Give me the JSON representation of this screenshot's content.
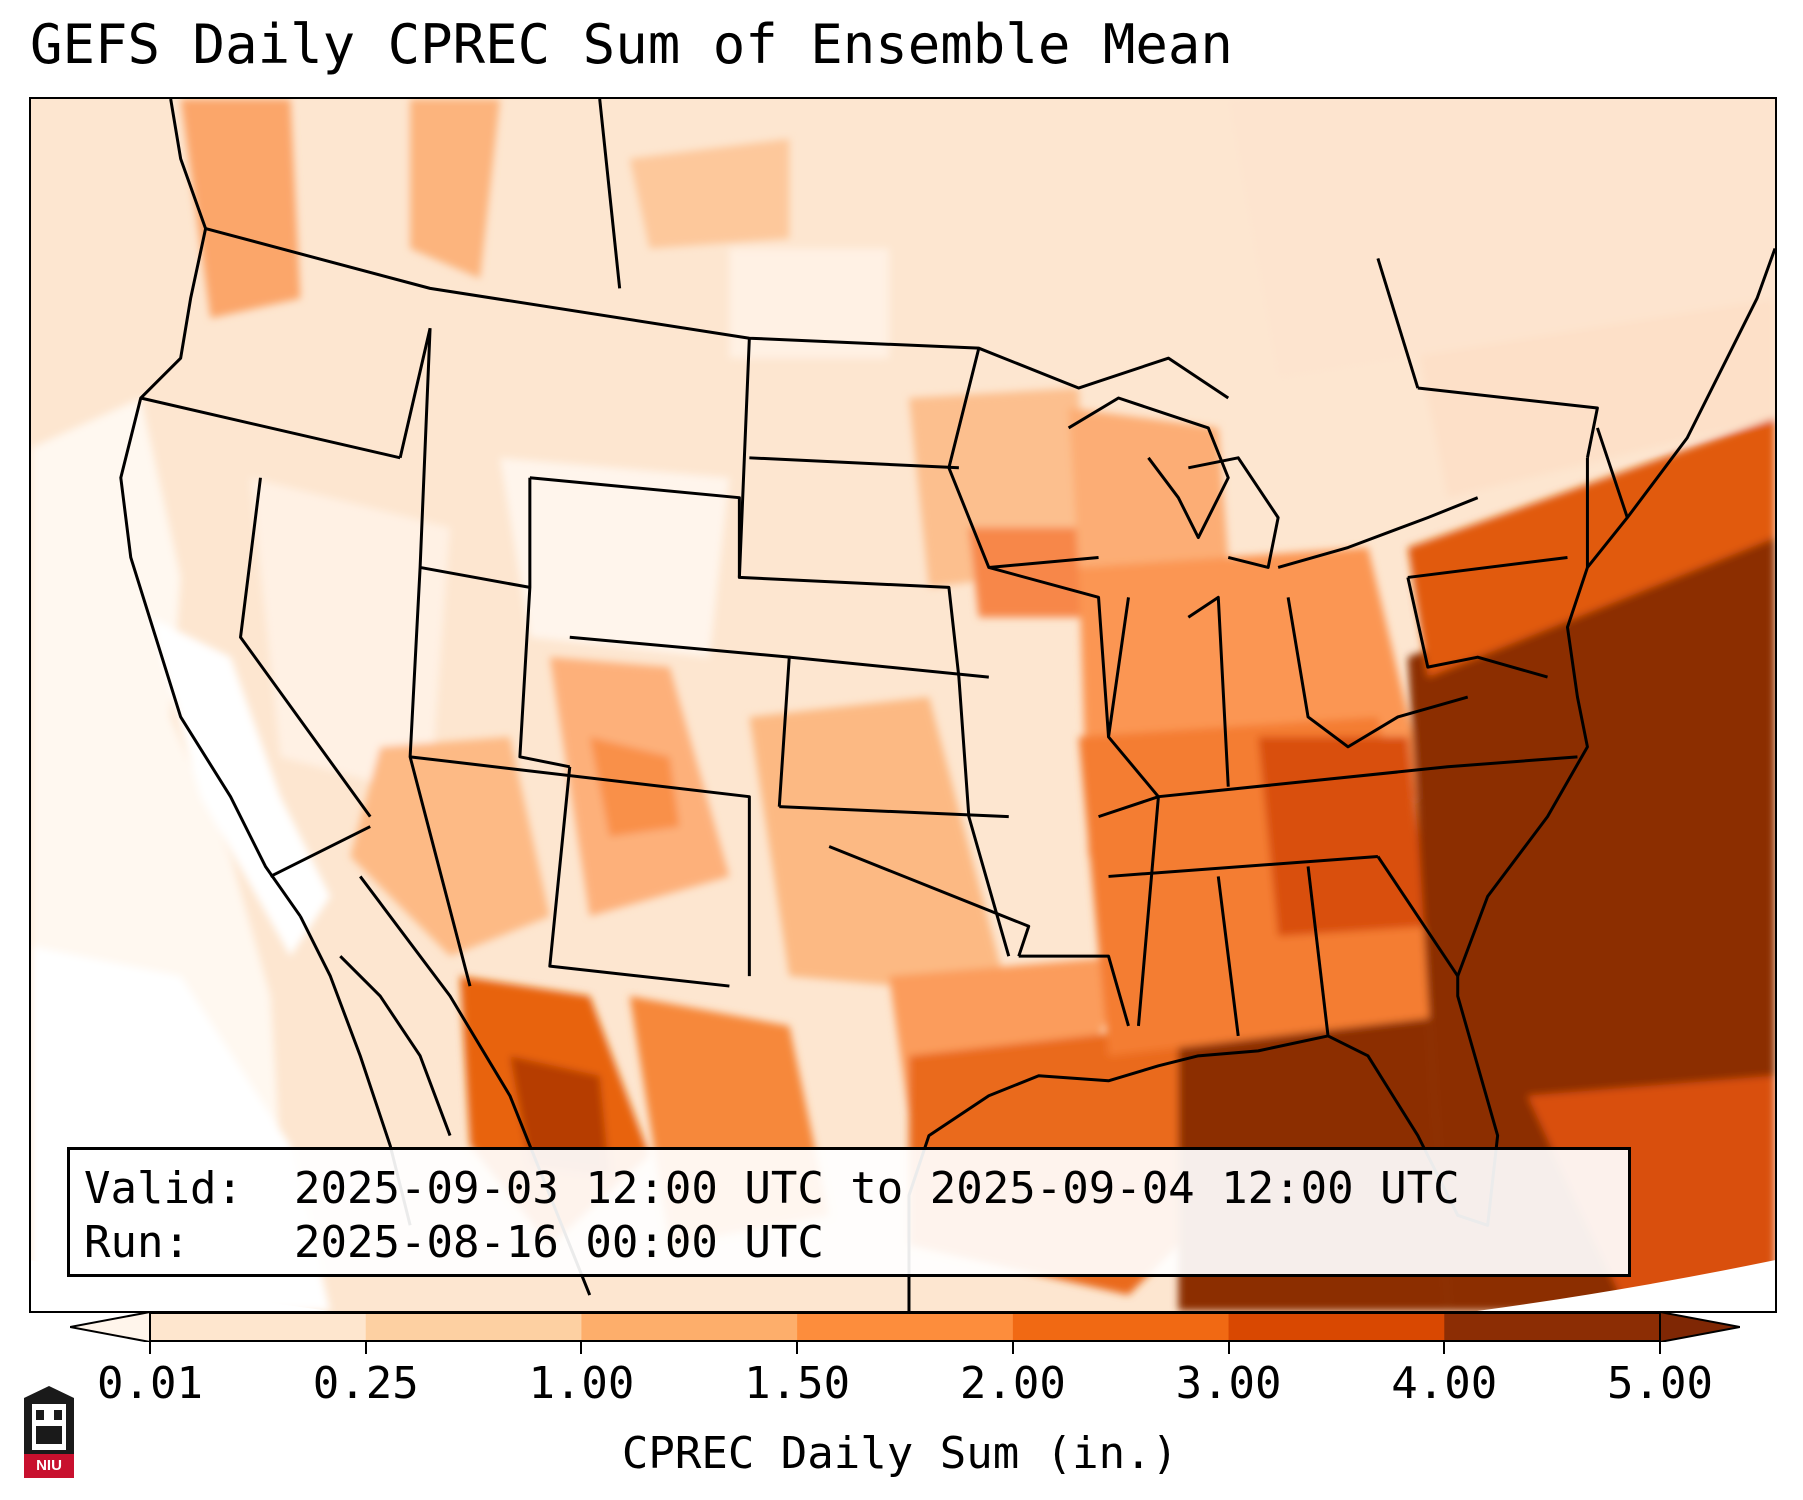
{
  "title": "GEFS Daily CPREC Sum of Ensemble Mean",
  "valid": {
    "valid_label": "Valid:",
    "valid_value": "2025-09-03 12:00 UTC to 2025-09-04 12:00 UTC",
    "run_label": "Run:",
    "run_value": "2025-08-16 00:00 UTC"
  },
  "colorbar": {
    "label": "CPREC Daily Sum (in.)",
    "ticks": [
      "0.01",
      "0.25",
      "1.00",
      "1.50",
      "2.00",
      "3.00",
      "4.00",
      "5.00"
    ],
    "colors": [
      "#fff5eb",
      "#fee6ce",
      "#fdd0a2",
      "#fdae6b",
      "#fd8d3c",
      "#f16913",
      "#d94801",
      "#8c2d04"
    ],
    "under_color": "#ffffff",
    "over_color": "#7f2704"
  },
  "logo": {
    "text": "NIU",
    "icon": "niu-tower-shield-icon",
    "color": "#c8102e"
  }
}
